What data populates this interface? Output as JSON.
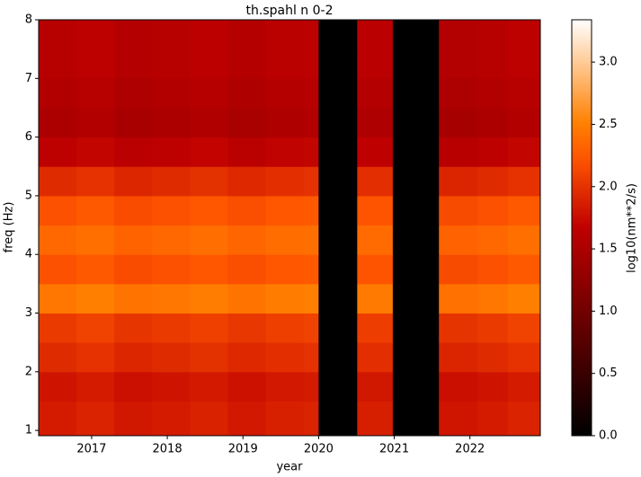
{
  "chart_data": {
    "type": "heatmap",
    "title": "th.spahl n 0-2",
    "x_label": "year",
    "y_label": "freq (Hz)",
    "colorbar_label": "log10(nm**2/s)",
    "colormap": "gist_heat",
    "x_edges": [
      2016.3,
      2016.8,
      2017.3,
      2017.8,
      2018.3,
      2018.8,
      2019.3,
      2019.8,
      2020.0,
      2020.51,
      2020.98,
      2021.59,
      2022.1,
      2022.5,
      2022.93
    ],
    "y_edges": [
      0.91,
      1.5,
      2,
      2.5,
      3,
      3.5,
      4,
      4.5,
      5,
      5.5,
      6,
      6.5,
      7,
      7.5,
      8
    ],
    "values": [
      [
        1.85,
        1.9,
        1.82,
        1.85,
        1.89,
        1.83,
        1.88,
        1.9,
        0,
        1.87,
        0,
        1.81,
        1.85,
        1.9
      ],
      [
        1.8,
        1.85,
        1.77,
        1.8,
        1.84,
        1.78,
        1.83,
        1.85,
        0,
        1.82,
        0,
        1.76,
        1.8,
        1.85
      ],
      [
        1.95,
        2.0,
        1.92,
        1.95,
        1.99,
        1.93,
        1.98,
        2.0,
        0,
        1.97,
        0,
        1.91,
        1.95,
        2.0
      ],
      [
        2.05,
        2.1,
        2.02,
        2.05,
        2.09,
        2.03,
        2.08,
        2.1,
        0,
        2.07,
        0,
        2.01,
        2.05,
        2.1
      ],
      [
        2.45,
        2.5,
        2.42,
        2.45,
        2.49,
        2.43,
        2.48,
        2.5,
        0,
        2.47,
        0,
        2.41,
        2.45,
        2.5
      ],
      [
        2.2,
        2.25,
        2.17,
        2.2,
        2.24,
        2.18,
        2.23,
        2.25,
        0,
        2.22,
        0,
        2.16,
        2.2,
        2.25
      ],
      [
        2.35,
        2.4,
        2.32,
        2.35,
        2.39,
        2.33,
        2.38,
        2.4,
        0,
        2.37,
        0,
        2.31,
        2.35,
        2.4
      ],
      [
        2.2,
        2.25,
        2.17,
        2.2,
        2.24,
        2.18,
        2.23,
        2.25,
        0,
        2.22,
        0,
        2.16,
        2.2,
        2.25
      ],
      [
        1.95,
        2.0,
        1.92,
        1.95,
        1.99,
        1.93,
        1.98,
        2.0,
        0,
        1.97,
        0,
        1.91,
        1.95,
        2.0
      ],
      [
        1.65,
        1.7,
        1.62,
        1.65,
        1.69,
        1.63,
        1.68,
        1.7,
        0,
        1.67,
        0,
        1.61,
        1.65,
        1.7
      ],
      [
        1.5,
        1.55,
        1.47,
        1.5,
        1.54,
        1.48,
        1.53,
        1.55,
        0,
        1.52,
        0,
        1.46,
        1.5,
        1.55
      ],
      [
        1.55,
        1.6,
        1.52,
        1.55,
        1.59,
        1.53,
        1.58,
        1.6,
        0,
        1.57,
        0,
        1.51,
        1.55,
        1.6
      ],
      [
        1.6,
        1.65,
        1.57,
        1.6,
        1.64,
        1.58,
        1.63,
        1.65,
        0,
        1.62,
        0,
        1.56,
        1.6,
        1.65
      ],
      [
        1.6,
        1.65,
        1.57,
        1.6,
        1.64,
        1.58,
        1.63,
        1.65,
        0,
        1.62,
        0,
        1.56,
        1.6,
        1.65
      ]
    ],
    "xlim": [
      2016.3,
      2022.93
    ],
    "xticks": [
      2017,
      2018,
      2019,
      2020,
      2021,
      2022
    ],
    "ylim": [
      0.91,
      8
    ],
    "yticks": [
      1,
      2,
      3,
      4,
      5,
      6,
      7,
      8
    ],
    "clim": [
      0,
      3.34
    ],
    "cticks": [
      {
        "value": 0,
        "label": "0.0"
      },
      {
        "value": 0.5,
        "label": "0.5"
      },
      {
        "value": 1,
        "label": "1.0"
      },
      {
        "value": 1.5,
        "label": "1.5"
      },
      {
        "value": 2,
        "label": "2.0"
      },
      {
        "value": 2.5,
        "label": "2.5"
      },
      {
        "value": 3,
        "label": "3.0"
      }
    ]
  }
}
